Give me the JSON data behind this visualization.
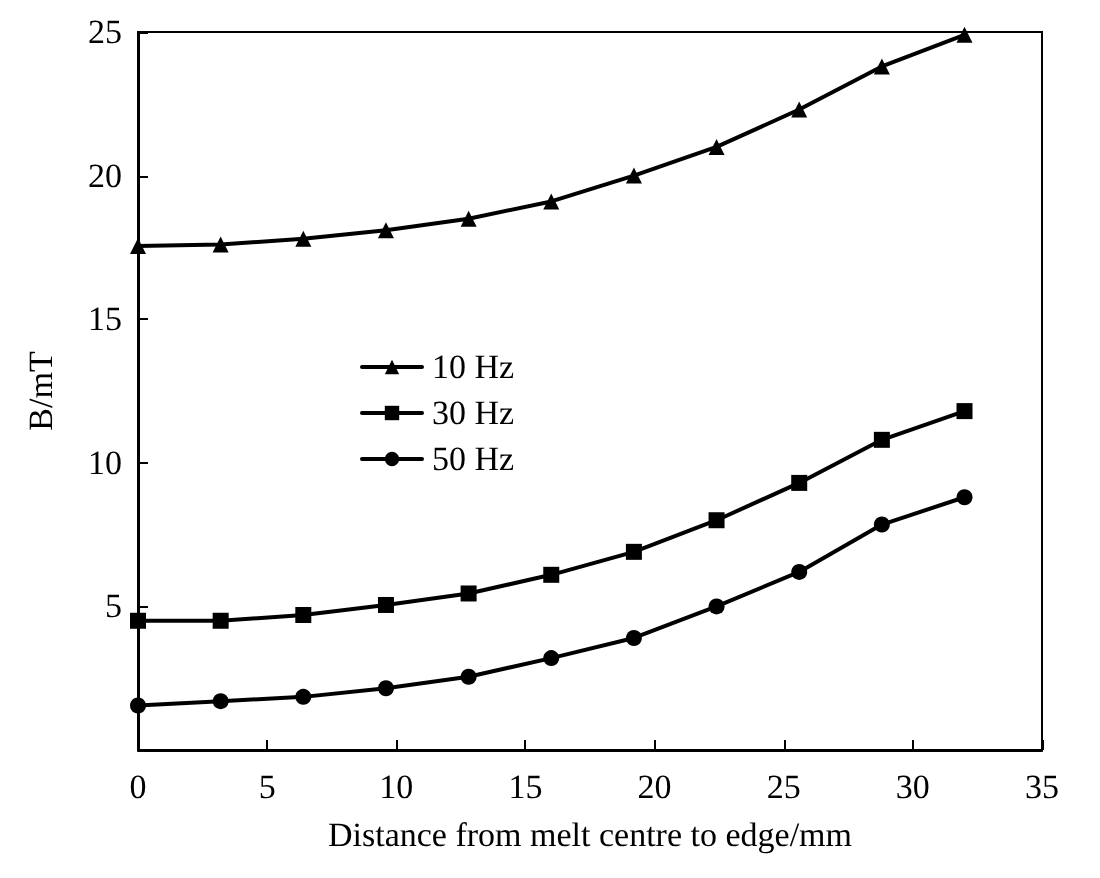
{
  "chart_data": {
    "type": "line",
    "xlabel": "Distance from melt centre to edge/mm",
    "ylabel": "B/mT",
    "x": [
      0,
      3.2,
      6.4,
      9.6,
      12.8,
      16,
      19.2,
      22.4,
      25.6,
      28.8,
      32
    ],
    "series": [
      {
        "name": "10 Hz",
        "color": "#000000",
        "marker": "triangle",
        "values": [
          17.55,
          17.6,
          17.8,
          18.1,
          18.5,
          19.1,
          20.0,
          21.0,
          22.3,
          23.8,
          24.9
        ]
      },
      {
        "name": "30 Hz",
        "color": "#000000",
        "marker": "square",
        "values": [
          4.5,
          4.5,
          4.7,
          5.05,
          5.45,
          6.1,
          6.9,
          8.0,
          9.3,
          10.8,
          11.8
        ]
      },
      {
        "name": "50 Hz",
        "color": "#000000",
        "marker": "circle",
        "values": [
          1.55,
          1.7,
          1.85,
          2.15,
          2.55,
          3.2,
          3.9,
          5.0,
          6.2,
          7.85,
          8.8
        ]
      }
    ],
    "xlim": [
      0,
      35
    ],
    "xticks": [
      0,
      5,
      10,
      15,
      20,
      25,
      30,
      35
    ],
    "ylim": [
      0,
      25
    ],
    "yticks": [
      5,
      10,
      15,
      20,
      25
    ],
    "grid": false,
    "legend": "left",
    "line_style": "solid"
  }
}
